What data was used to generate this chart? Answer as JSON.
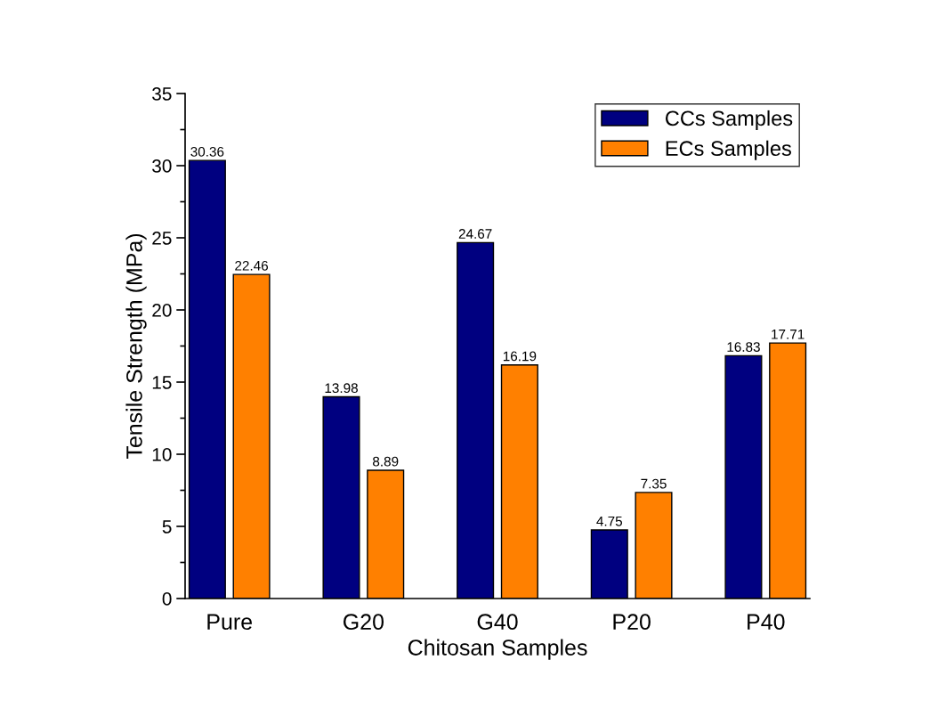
{
  "chart_data": {
    "type": "bar",
    "xlabel": "Chitosan Samples",
    "ylabel": "Tensile Strength (MPa)",
    "categories": [
      "Pure",
      "G20",
      "G40",
      "P20",
      "P40"
    ],
    "series": [
      {
        "name": "CCs Samples",
        "color": "#000080",
        "values": [
          30.36,
          13.98,
          24.67,
          4.75,
          16.83
        ]
      },
      {
        "name": "ECs Samples",
        "color": "#ff8000",
        "values": [
          22.46,
          8.89,
          16.19,
          7.35,
          17.71
        ]
      }
    ],
    "ylim": [
      0,
      35
    ],
    "yticks": [
      0,
      5,
      10,
      15,
      20,
      25,
      30,
      35
    ],
    "data_labels": true,
    "legend": "top right",
    "grid": false
  }
}
